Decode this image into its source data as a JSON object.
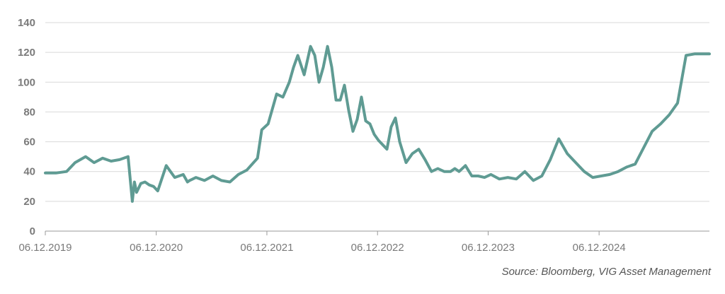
{
  "colors": {
    "line": "#5f9b93",
    "grid": "#d9d9d9",
    "axis": "#9a9a9a",
    "text": "#7a7a7a"
  },
  "source": "Source: Bloomberg, VIG Asset Management",
  "chart_data": {
    "type": "line",
    "title": "",
    "xlabel": "",
    "ylabel": "",
    "ylim": [
      0,
      140
    ],
    "yticks": [
      0,
      20,
      40,
      60,
      80,
      100,
      120,
      140
    ],
    "xlim": [
      "2019-12-06",
      "2025-12-05"
    ],
    "xtick_labels": [
      "06.12.2019",
      "06.12.2020",
      "06.12.2021",
      "06.12.2022",
      "06.12.2023",
      "06.12.2024"
    ],
    "grid": "horizontal",
    "series": [
      {
        "name": "",
        "x": [
          "2019-12-06",
          "2020-01-10",
          "2020-02-14",
          "2020-03-13",
          "2020-04-17",
          "2020-05-15",
          "2020-06-12",
          "2020-07-10",
          "2020-08-07",
          "2020-09-04",
          "2020-09-18",
          "2020-09-25",
          "2020-10-02",
          "2020-10-16",
          "2020-10-30",
          "2020-11-13",
          "2020-11-27",
          "2020-12-11",
          "2021-01-08",
          "2021-02-05",
          "2021-03-05",
          "2021-03-19",
          "2021-03-26",
          "2021-04-16",
          "2021-05-14",
          "2021-06-11",
          "2021-07-09",
          "2021-08-06",
          "2021-09-03",
          "2021-10-01",
          "2021-11-05",
          "2021-11-19",
          "2021-12-10",
          "2022-01-07",
          "2022-01-28",
          "2022-02-18",
          "2022-03-04",
          "2022-03-18",
          "2022-04-08",
          "2022-04-29",
          "2022-05-13",
          "2022-05-27",
          "2022-06-10",
          "2022-06-24",
          "2022-07-08",
          "2022-07-22",
          "2022-08-05",
          "2022-08-19",
          "2022-09-02",
          "2022-09-16",
          "2022-09-30",
          "2022-10-14",
          "2022-10-28",
          "2022-11-11",
          "2022-11-25",
          "2022-12-09",
          "2023-01-06",
          "2023-01-20",
          "2023-02-03",
          "2023-02-17",
          "2023-03-10",
          "2023-03-31",
          "2023-04-21",
          "2023-05-12",
          "2023-06-02",
          "2023-06-23",
          "2023-07-14",
          "2023-08-04",
          "2023-08-18",
          "2023-09-01",
          "2023-09-22",
          "2023-10-13",
          "2023-11-03",
          "2023-11-24",
          "2023-12-15",
          "2024-01-12",
          "2024-02-09",
          "2024-03-08",
          "2024-04-05",
          "2024-05-03",
          "2024-05-31",
          "2024-06-28",
          "2024-07-26",
          "2024-08-23",
          "2024-09-20",
          "2024-10-18",
          "2024-11-15",
          "2024-12-13",
          "2025-01-10",
          "2025-02-07",
          "2025-03-07",
          "2025-04-04",
          "2025-05-02",
          "2025-05-30",
          "2025-06-27",
          "2025-07-25",
          "2025-08-22",
          "2025-09-19",
          "2025-10-17",
          "2025-11-07",
          "2025-11-21",
          "2025-12-05"
        ],
        "values": [
          39,
          39,
          40,
          46,
          50,
          46,
          49,
          47,
          48,
          50,
          20,
          33,
          26,
          32,
          33,
          31,
          30,
          27,
          44,
          36,
          38,
          33,
          34,
          36,
          34,
          37,
          34,
          33,
          38,
          41,
          49,
          68,
          72,
          92,
          90,
          100,
          110,
          118,
          105,
          124,
          118,
          100,
          110,
          124,
          110,
          88,
          88,
          98,
          81,
          67,
          75,
          90,
          74,
          72,
          65,
          61,
          55,
          70,
          76,
          60,
          46,
          52,
          55,
          48,
          40,
          42,
          40,
          40,
          42,
          40,
          44,
          37,
          37,
          36,
          38,
          35,
          36,
          35,
          40,
          34,
          37,
          48,
          62,
          52,
          46,
          40,
          36,
          37,
          38,
          40,
          43,
          45,
          56,
          67,
          72,
          78,
          86,
          118,
          119,
          119,
          119,
          119
        ]
      }
    ]
  }
}
